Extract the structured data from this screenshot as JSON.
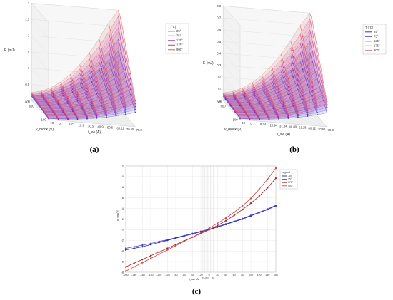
{
  "figure": {
    "captions": [
      "(a)",
      "(b)",
      "(c)"
    ]
  },
  "chart_data": [
    {
      "type": "surface3d",
      "panel": "a",
      "zlabel": "E (mJ)",
      "xlabel": "i_sw (A)",
      "ylabel": "v_block (V)",
      "zlim": [
        0,
        3.5
      ],
      "zticks": [
        "3",
        "2.5",
        "2",
        "1.5",
        "1",
        "0.5",
        "0"
      ],
      "x_ticks": [
        "-10",
        "0",
        "9.73",
        "20.9",
        "30.5",
        "40.9",
        "50.5",
        "60.12",
        "70.55",
        "79.3"
      ],
      "x_values": [
        -10,
        0,
        9.73,
        20.9,
        30.5,
        40.9,
        50.5,
        60.12,
        70.55,
        79.3
      ],
      "y_ticks": [
        "800",
        "600",
        "-100"
      ],
      "legend": {
        "title": "T (°C)",
        "labels": [
          "25°",
          "75°",
          "125°",
          "175°",
          "900°"
        ]
      },
      "colors": [
        "#3333cc",
        "#6633cc",
        "#9933bb",
        "#cc3399",
        "#e05a5a"
      ]
    },
    {
      "type": "surface3d",
      "panel": "b",
      "zlabel": "E (mJ)",
      "xlabel": "i_sw (A)",
      "ylabel": "v_block (V)",
      "zlim": [
        0,
        0.8
      ],
      "zticks": [
        "0.8",
        "0.7",
        "0.6",
        "0.5",
        "0.4",
        "0.3",
        "0.2",
        "0.1",
        "0"
      ],
      "x_ticks": [
        "-10",
        "0",
        "9.74",
        "20.94",
        "31.34",
        "40.89",
        "51.28",
        "60.12",
        "70.55",
        "79.3"
      ],
      "x_values": [
        -10,
        0,
        9.74,
        20.94,
        31.34,
        40.89,
        51.28,
        60.12,
        70.55,
        79.3
      ],
      "y_ticks": [
        "800",
        "600",
        "-100"
      ],
      "legend": {
        "title": "T (°C)",
        "labels": [
          "25°",
          "75°",
          "125°",
          "175°",
          "900°"
        ]
      },
      "colors": [
        "#3333cc",
        "#6633cc",
        "#9933bb",
        "#cc3399",
        "#e05a5a"
      ]
    },
    {
      "type": "line",
      "panel": "c",
      "xlabel": "i_sw (A)",
      "ylabel": "v_sw (V)",
      "xlim": [
        -200,
        160
      ],
      "ylim": [
        -8,
        12
      ],
      "x_ticks": [
        -200,
        -180,
        -160,
        -140,
        -120,
        -100,
        -80,
        -60,
        -40,
        -20,
        0,
        20,
        40,
        60,
        80,
        100,
        120,
        140,
        160
      ],
      "y_ticks": [
        -8,
        -6,
        -4,
        -2,
        0,
        2,
        4,
        6,
        8,
        10,
        12
      ],
      "x_extra_ticks": [
        "-15",
        "-6.2",
        "10"
      ],
      "legend": {
        "title": "Legend",
        "labels": [
          "-40°",
          "25°",
          "175°",
          "900°"
        ]
      },
      "x": [
        -200,
        -180,
        -160,
        -140,
        -120,
        -100,
        -80,
        -60,
        -40,
        -20,
        0,
        20,
        40,
        60,
        80,
        100,
        120,
        140,
        160
      ],
      "series": [
        {
          "name": "-40°",
          "color": "#2020b0",
          "values": [
            -3.8,
            -3.5,
            -3.2,
            -2.8,
            -2.4,
            -2.0,
            -1.6,
            -1.2,
            -0.8,
            -0.4,
            0.0,
            0.5,
            1.0,
            1.5,
            2.0,
            2.6,
            3.2,
            3.8,
            4.5
          ]
        },
        {
          "name": "25°",
          "color": "#4040d0",
          "values": [
            -3.5,
            -3.2,
            -2.9,
            -2.6,
            -2.2,
            -1.9,
            -1.5,
            -1.1,
            -0.7,
            -0.3,
            0.1,
            0.6,
            1.1,
            1.6,
            2.1,
            2.7,
            3.3,
            3.9,
            4.6
          ]
        },
        {
          "name": "175°",
          "color": "#a02020",
          "values": [
            -7.0,
            -6.3,
            -5.6,
            -4.9,
            -4.2,
            -3.5,
            -2.8,
            -2.1,
            -1.4,
            -0.7,
            0.0,
            0.8,
            1.7,
            2.7,
            3.8,
            5.0,
            6.3,
            7.9,
            9.7
          ]
        },
        {
          "name": "900°",
          "color": "#d04040",
          "values": [
            -7.8,
            -7.0,
            -6.2,
            -5.4,
            -4.6,
            -3.8,
            -3.0,
            -2.2,
            -1.4,
            -0.6,
            0.3,
            1.2,
            2.2,
            3.3,
            4.5,
            5.9,
            7.6,
            9.5,
            11.6
          ]
        }
      ]
    }
  ]
}
